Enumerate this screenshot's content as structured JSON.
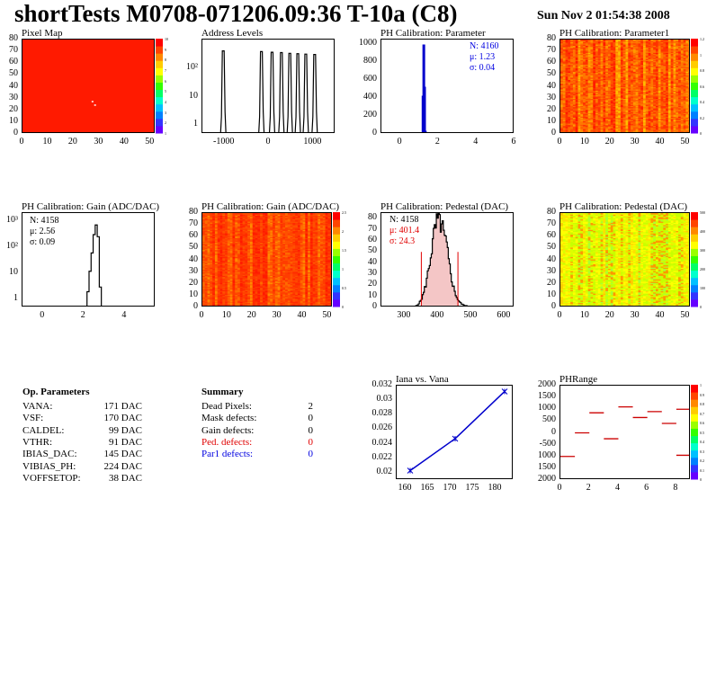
{
  "header": {
    "title": "shortTests M0708-071206.09:36 T-10a (C8)",
    "date": "Sun Nov  2 01:54:38 2008"
  },
  "op_params": {
    "title": "Op. Parameters",
    "rows": [
      {
        "name": "VANA:",
        "value": "171 DAC"
      },
      {
        "name": "VSF:",
        "value": "170 DAC"
      },
      {
        "name": "CALDEL:",
        "value": "99 DAC"
      },
      {
        "name": "VTHR:",
        "value": "91 DAC"
      },
      {
        "name": "IBIAS_DAC:",
        "value": "145 DAC"
      },
      {
        "name": "VIBIAS_PH:",
        "value": "224 DAC"
      },
      {
        "name": "VOFFSETOP:",
        "value": "38 DAC"
      }
    ]
  },
  "summary": {
    "title": "Summary",
    "rows": [
      {
        "name": "Dead Pixels:",
        "value": "2",
        "color": "#000000"
      },
      {
        "name": "Mask defects:",
        "value": "0",
        "color": "#000000"
      },
      {
        "name": "Gain defects:",
        "value": "0",
        "color": "#000000"
      },
      {
        "name": "Ped. defects:",
        "value": "0",
        "color": "#e00000"
      },
      {
        "name": "Par1 defects:",
        "value": "0",
        "color": "#0000e0"
      }
    ]
  },
  "stats": {
    "param": {
      "n": "N: 4160",
      "mu": "μ: 1.23",
      "sigma": "σ: 0.04"
    },
    "gain": {
      "n": "N: 4158",
      "mu": "μ: 2.56",
      "sigma": "σ: 0.09"
    },
    "ped": {
      "n": "N: 4158",
      "mu": "μ: 401.4",
      "sigma": "σ: 24.3"
    }
  },
  "chart_data": [
    {
      "type": "heatmap",
      "title": "Pixel Map",
      "xlim": [
        0,
        52
      ],
      "ylim": [
        0,
        80
      ],
      "xticks": [
        "0",
        "10",
        "20",
        "30",
        "40",
        "50"
      ],
      "yticks": [
        "0",
        "10",
        "20",
        "30",
        "40",
        "50",
        "60",
        "70",
        "80"
      ],
      "zticks": [
        "1",
        "2",
        "3",
        "4",
        "5",
        "6",
        "7",
        "8",
        "9",
        "10"
      ],
      "uniform_value": 10,
      "dead_pixels": [
        [
          27,
          28
        ],
        [
          28,
          25
        ]
      ]
    },
    {
      "type": "bar",
      "title": "Address Levels",
      "xlim": [
        -1500,
        1500
      ],
      "log_y": true,
      "xticks": [
        "-1000",
        "0",
        "1000"
      ],
      "yticks": [
        "1",
        "10",
        "10²"
      ],
      "peaks": [
        {
          "x": -1030,
          "h": 400
        },
        {
          "x": -170,
          "h": 380
        },
        {
          "x": 70,
          "h": 360
        },
        {
          "x": 280,
          "h": 350
        },
        {
          "x": 470,
          "h": 330
        },
        {
          "x": 650,
          "h": 320
        },
        {
          "x": 830,
          "h": 310
        },
        {
          "x": 1030,
          "h": 300
        }
      ]
    },
    {
      "type": "bar",
      "title": "PH Calibration: Parameter",
      "xlim": [
        -1,
        6
      ],
      "ylim": [
        0,
        1050
      ],
      "xticks": [
        "0",
        "2",
        "4",
        "6"
      ],
      "yticks": [
        "0",
        "200",
        "400",
        "600",
        "800",
        "1000"
      ],
      "bins": [
        {
          "x": 1.15,
          "y": 10
        },
        {
          "x": 1.19,
          "y": 420
        },
        {
          "x": 1.23,
          "y": 990
        },
        {
          "x": 1.27,
          "y": 520
        },
        {
          "x": 1.31,
          "y": 30
        }
      ]
    },
    {
      "type": "heatmap",
      "title": "PH Calibration: Parameter1",
      "xlim": [
        0,
        52
      ],
      "ylim": [
        0,
        80
      ],
      "xticks": [
        "0",
        "10",
        "20",
        "30",
        "40",
        "50"
      ],
      "yticks": [
        "0",
        "10",
        "20",
        "30",
        "40",
        "50",
        "60",
        "70",
        "80"
      ],
      "zticks": [
        "0",
        "0.2",
        "0.4",
        "0.6",
        "0.8",
        "1",
        "1.2"
      ]
    },
    {
      "type": "bar",
      "title": "PH Calibration: Gain (ADC/DAC)",
      "xlim": [
        -1,
        5.5
      ],
      "log_y": true,
      "xticks": [
        "0",
        "2",
        "4"
      ],
      "yticks": [
        "1",
        "10",
        "10²",
        "10³"
      ],
      "bins": [
        {
          "x": 2.2,
          "y": 2
        },
        {
          "x": 2.3,
          "y": 12
        },
        {
          "x": 2.4,
          "y": 60
        },
        {
          "x": 2.5,
          "y": 300
        },
        {
          "x": 2.6,
          "y": 700
        },
        {
          "x": 2.7,
          "y": 250
        },
        {
          "x": 2.8,
          "y": 3
        }
      ]
    },
    {
      "type": "heatmap",
      "title": "PH Calibration: Gain (ADC/DAC)",
      "xlim": [
        0,
        52
      ],
      "ylim": [
        0,
        80
      ],
      "xticks": [
        "0",
        "10",
        "20",
        "30",
        "40",
        "50"
      ],
      "yticks": [
        "0",
        "10",
        "20",
        "30",
        "40",
        "50",
        "60",
        "70",
        "80"
      ],
      "zticks": [
        "0",
        "0.5",
        "1",
        "1.5",
        "2",
        "2.5"
      ]
    },
    {
      "type": "bar",
      "title": "PH Calibration: Pedestal (DAC)",
      "xlim": [
        230,
        630
      ],
      "ylim": [
        0,
        85
      ],
      "xticks": [
        "300",
        "400",
        "500",
        "600"
      ],
      "yticks": [
        "0",
        "10",
        "20",
        "30",
        "40",
        "50",
        "60",
        "70",
        "80"
      ],
      "mean": 401.4,
      "sigma": 24.3,
      "cuts": [
        350,
        460
      ]
    },
    {
      "type": "heatmap",
      "title": "PH Calibration: Pedestal (DAC)",
      "xlim": [
        0,
        52
      ],
      "ylim": [
        0,
        80
      ],
      "xticks": [
        "0",
        "10",
        "20",
        "30",
        "40",
        "50"
      ],
      "yticks": [
        "0",
        "10",
        "20",
        "30",
        "40",
        "50",
        "60",
        "70",
        "80"
      ],
      "zticks": [
        "0",
        "100",
        "200",
        "300",
        "400",
        "500"
      ]
    },
    {
      "type": "line",
      "title": "Iana vs. Vana",
      "xlim": [
        158,
        184
      ],
      "ylim": [
        0.019,
        0.032
      ],
      "xticks": [
        "160",
        "165",
        "170",
        "175",
        "180"
      ],
      "yticks": [
        "0.02",
        "0.022",
        "0.024",
        "0.026",
        "0.028",
        "0.03",
        "0.032"
      ],
      "x": [
        161,
        171,
        182
      ],
      "y": [
        0.0203,
        0.0247,
        0.0312
      ]
    },
    {
      "type": "scatter",
      "title": "PHRange",
      "xlim": [
        0,
        9
      ],
      "ylim": [
        -2000,
        2000
      ],
      "xticks": [
        "0",
        "2",
        "4",
        "6",
        "8"
      ],
      "yticks": [
        "2000",
        "1500",
        "1000",
        "500",
        "0",
        "-500",
        "1000",
        "1500",
        "2000"
      ],
      "zticks": [
        "0",
        "0.1",
        "0.2",
        "0.3",
        "0.4",
        "0.5",
        "0.6",
        "0.7",
        "0.8",
        "0.9",
        "1"
      ],
      "segments": [
        {
          "x": 0.5,
          "y": -1000
        },
        {
          "x": 1.5,
          "y": 0
        },
        {
          "x": 2.5,
          "y": 850
        },
        {
          "x": 3.5,
          "y": -250
        },
        {
          "x": 4.5,
          "y": 1100
        },
        {
          "x": 5.5,
          "y": 650
        },
        {
          "x": 6.5,
          "y": 900
        },
        {
          "x": 7.5,
          "y": 400
        },
        {
          "x": 8.5,
          "y": 1000
        },
        {
          "x": 8.5,
          "y": -950
        }
      ]
    }
  ]
}
